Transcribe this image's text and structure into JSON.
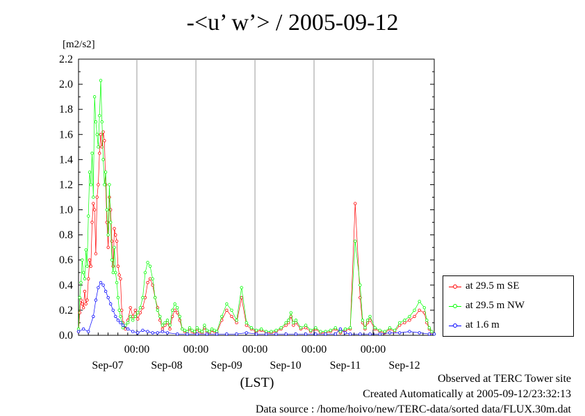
{
  "chart_data": {
    "type": "line",
    "title": "-<u’ w’> / 2005-09-12",
    "ylabel": "[m2/s2]",
    "xlabel": "(LST)",
    "ylim": [
      0.0,
      2.2
    ],
    "y_ticks": [
      "0.0",
      "0.2",
      "0.4",
      "0.6",
      "0.8",
      "1.0",
      "1.2",
      "1.4",
      "1.6",
      "1.8",
      "2.0",
      "2.2"
    ],
    "x_ticks": [
      "00:00",
      "00:00",
      "00:00",
      "00:00",
      "00:00"
    ],
    "day_labels": [
      "Sep-07",
      "Sep-08",
      "Sep-09",
      "Sep-10",
      "Sep-11",
      "Sep-12"
    ],
    "grid": true,
    "legend_position": "right",
    "series": [
      {
        "name": "at 29.5 m SE",
        "color": "#ff0000",
        "x": [
          0,
          0.5,
          1,
          1.5,
          2,
          2.5,
          3,
          3.5,
          4,
          4.5,
          5,
          5.5,
          6,
          6.5,
          7,
          7.5,
          8,
          8.5,
          9,
          9.5,
          10,
          10.5,
          11,
          11.5,
          12,
          12.5,
          13,
          13.5,
          14,
          14.5,
          15,
          15.5,
          16,
          16.5,
          17,
          17.5,
          18,
          19,
          20,
          21,
          22,
          23,
          24,
          25,
          26,
          27,
          28,
          29,
          30,
          31,
          32,
          33,
          34,
          35,
          36,
          37,
          38,
          39,
          40,
          41,
          42,
          43,
          44,
          45,
          46,
          47,
          48,
          49,
          50,
          51,
          52,
          53,
          54,
          55,
          56,
          58,
          60,
          62,
          64,
          66,
          68,
          70,
          72,
          74,
          76,
          78,
          80,
          82,
          84,
          85,
          86,
          87,
          88,
          90,
          92,
          94,
          96,
          98,
          100,
          102,
          104,
          106,
          108,
          110,
          112,
          114,
          115,
          116,
          117,
          118,
          120,
          122,
          124,
          126,
          128,
          130,
          132,
          134,
          136,
          138,
          140,
          141,
          142,
          143,
          144
        ],
        "y": [
          0.03,
          0.18,
          0.28,
          0.25,
          0.22,
          0.35,
          0.25,
          0.28,
          0.45,
          0.6,
          0.55,
          0.9,
          1.05,
          1.0,
          0.65,
          1.1,
          1.2,
          1.45,
          1.6,
          1.5,
          1.62,
          1.55,
          1.2,
          0.9,
          0.7,
          1.1,
          1.0,
          0.75,
          0.55,
          0.85,
          0.8,
          0.75,
          0.55,
          0.48,
          0.45,
          0.2,
          0.1,
          0.05,
          0.12,
          0.22,
          0.15,
          0.2,
          0.13,
          0.18,
          0.22,
          0.3,
          0.42,
          0.45,
          0.4,
          0.3,
          0.22,
          0.12,
          0.05,
          0.08,
          0.1,
          0.05,
          0.15,
          0.2,
          0.18,
          0.12,
          0.05,
          0.03,
          0.02,
          0.05,
          0.03,
          0.02,
          0.05,
          0.03,
          0.02,
          0.06,
          0.03,
          0.02,
          0.04,
          0.03,
          0.02,
          0.12,
          0.2,
          0.15,
          0.1,
          0.3,
          0.08,
          0.05,
          0.03,
          0.04,
          0.02,
          0.02,
          0.03,
          0.05,
          0.08,
          0.1,
          0.15,
          0.08,
          0.1,
          0.05,
          0.06,
          0.03,
          0.05,
          0.02,
          0.02,
          0.03,
          0.05,
          0.02,
          0.04,
          0.05,
          1.05,
          0.3,
          0.1,
          0.05,
          0.1,
          0.12,
          0.05,
          0.03,
          0.02,
          0.05,
          0.03,
          0.08,
          0.1,
          0.12,
          0.15,
          0.2,
          0.18,
          0.1,
          0.05,
          0.02,
          0.01
        ]
      },
      {
        "name": "at 29.5 m NW",
        "color": "#00ff00",
        "x": [
          0,
          0.5,
          1,
          1.5,
          2,
          2.5,
          3,
          3.5,
          4,
          4.5,
          5,
          5.5,
          6,
          6.5,
          7,
          7.5,
          8,
          8.5,
          9,
          9.5,
          10,
          10.5,
          11,
          11.5,
          12,
          12.5,
          13,
          13.5,
          14,
          14.5,
          15,
          15.5,
          16,
          16.5,
          17,
          17.5,
          18,
          19,
          20,
          21,
          22,
          23,
          24,
          25,
          26,
          27,
          28,
          29,
          30,
          31,
          32,
          33,
          34,
          35,
          36,
          37,
          38,
          39,
          40,
          41,
          42,
          43,
          44,
          45,
          46,
          47,
          48,
          49,
          50,
          51,
          52,
          53,
          54,
          55,
          56,
          58,
          60,
          62,
          64,
          66,
          68,
          70,
          72,
          74,
          76,
          78,
          80,
          82,
          84,
          85,
          86,
          87,
          88,
          90,
          92,
          94,
          96,
          98,
          100,
          102,
          104,
          106,
          108,
          110,
          112,
          114,
          115,
          116,
          117,
          118,
          120,
          122,
          124,
          126,
          128,
          130,
          132,
          134,
          136,
          138,
          140,
          141,
          142,
          143,
          144
        ],
        "y": [
          0.05,
          0.3,
          0.42,
          0.6,
          0.5,
          0.45,
          0.68,
          0.55,
          0.95,
          1.3,
          1.2,
          1.45,
          1.1,
          1.9,
          1.7,
          1.6,
          1.5,
          1.75,
          2.03,
          1.7,
          1.4,
          1.2,
          1.3,
          1.0,
          0.8,
          1.2,
          0.9,
          0.6,
          0.5,
          0.7,
          0.5,
          0.42,
          0.3,
          0.2,
          0.15,
          0.1,
          0.06,
          0.08,
          0.1,
          0.15,
          0.12,
          0.15,
          0.18,
          0.22,
          0.3,
          0.5,
          0.58,
          0.55,
          0.45,
          0.3,
          0.2,
          0.15,
          0.08,
          0.1,
          0.12,
          0.08,
          0.2,
          0.25,
          0.22,
          0.15,
          0.05,
          0.04,
          0.03,
          0.06,
          0.04,
          0.03,
          0.06,
          0.04,
          0.03,
          0.08,
          0.04,
          0.03,
          0.05,
          0.04,
          0.03,
          0.15,
          0.25,
          0.2,
          0.12,
          0.38,
          0.1,
          0.06,
          0.04,
          0.05,
          0.03,
          0.03,
          0.04,
          0.06,
          0.1,
          0.12,
          0.18,
          0.1,
          0.12,
          0.06,
          0.08,
          0.04,
          0.06,
          0.03,
          0.03,
          0.04,
          0.06,
          0.03,
          0.05,
          0.06,
          0.75,
          0.4,
          0.12,
          0.06,
          0.12,
          0.15,
          0.06,
          0.04,
          0.03,
          0.06,
          0.04,
          0.1,
          0.12,
          0.15,
          0.2,
          0.27,
          0.22,
          0.12,
          0.06,
          0.03,
          0.01
        ]
      },
      {
        "name": "at 1.6 m",
        "color": "#0000ff",
        "x": [
          0,
          2,
          4,
          6,
          7,
          8,
          9,
          10,
          11,
          12,
          13,
          14,
          15,
          16,
          17,
          18,
          20,
          22,
          24,
          26,
          28,
          30,
          32,
          34,
          36,
          40,
          44,
          48,
          52,
          56,
          60,
          64,
          68,
          72,
          76,
          80,
          84,
          88,
          92,
          96,
          100,
          104,
          106,
          108,
          110,
          114,
          118,
          122,
          126,
          130,
          134,
          138,
          142,
          144
        ],
        "y": [
          0.03,
          0.05,
          0.03,
          0.15,
          0.28,
          0.38,
          0.42,
          0.4,
          0.35,
          0.3,
          0.25,
          0.2,
          0.15,
          0.12,
          0.1,
          0.08,
          0.05,
          0.03,
          0.02,
          0.04,
          0.03,
          0.02,
          0.02,
          0.03,
          0.02,
          0.01,
          0.01,
          0.01,
          0.01,
          0.01,
          0.01,
          0.01,
          0.02,
          0.01,
          0.01,
          0.01,
          0.01,
          0.01,
          0.01,
          0.01,
          0.01,
          0.01,
          0.05,
          0.02,
          0.01,
          0.01,
          0.01,
          0.01,
          0.02,
          0.02,
          0.03,
          0.02,
          0.01,
          0.01
        ]
      }
    ]
  },
  "footer": {
    "line1": "Observed at TERC Tower site",
    "line2": "Created Automatically at 2005-09-12/23:32:13",
    "line3": "Data source : /home/hoivo/new/TERC-data/sorted  data/FLUX.30m.dat"
  }
}
